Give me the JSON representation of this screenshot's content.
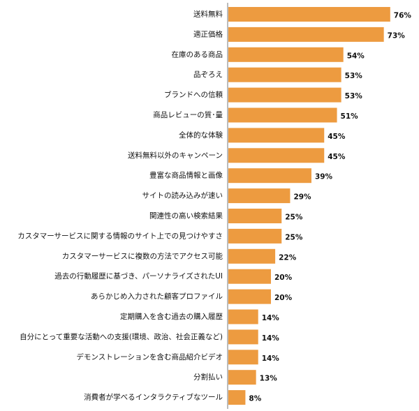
{
  "chart_data": {
    "type": "bar",
    "orientation": "horizontal",
    "categories": [
      "送料無料",
      "適正価格",
      "在庫のある商品",
      "品ぞろえ",
      "ブランドへの信頼",
      "商品レビューの質･量",
      "全体的な体験",
      "送料無料以外のキャンペーン",
      "豊富な商品情報と画像",
      "サイトの読み込みが速い",
      "関連性の高い検索結果",
      "カスタマーサービスに関する情報のサイト上での見つけやすさ",
      "カスタマーサービスに複数の方法でアクセス可能",
      "過去の行動履歴に基づき、パーソナライズされたUI",
      "あらかじめ入力された顧客プロファイル",
      "定期購入を含む過去の購入履歴",
      "自分にとって重要な活動への支援(環境、政治、社会正義など)",
      "デモンストレーションを含む商品紹介ビデオ",
      "分割払い",
      "消費者が学べるインタラクティブなツール"
    ],
    "values": [
      76,
      73,
      54,
      53,
      53,
      51,
      45,
      45,
      39,
      29,
      25,
      25,
      22,
      20,
      20,
      14,
      14,
      14,
      13,
      8
    ],
    "value_labels": [
      "76%",
      "73%",
      "54%",
      "53%",
      "53%",
      "51%",
      "45%",
      "45%",
      "39%",
      "29%",
      "25%",
      "25%",
      "22%",
      "20%",
      "20%",
      "14%",
      "14%",
      "14%",
      "13%",
      "8%"
    ],
    "title": "",
    "xlabel": "",
    "ylabel": "",
    "xlim": [
      0,
      100
    ],
    "grid": false,
    "legend": "none",
    "bar_color": "#ED9B40",
    "axis_color": "#777777"
  }
}
